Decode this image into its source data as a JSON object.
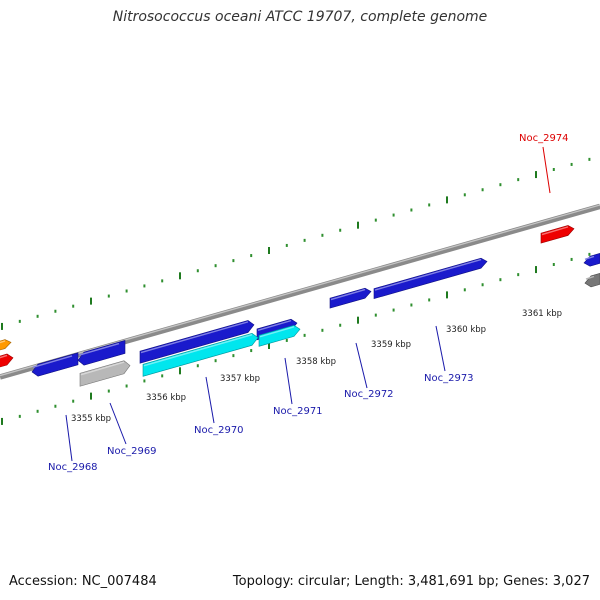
{
  "title": "Nitrosococcus oceani ATCC 19707, complete genome",
  "footer": {
    "accession": "Accession: NC_007484",
    "topology": "Topology: circular; Length: 3,481,691 bp; Genes: 3,027"
  },
  "colors": {
    "background": "#ffffff",
    "backbone": "#8a8a8a",
    "tick_major": "#1f7a1f",
    "tick_minor": "#2f8f2f",
    "gene_blue": "#1a1acc",
    "gene_cyan": "#00e6ee",
    "gene_grey": "#b8b8b8",
    "gene_red": "#ee0000",
    "gene_orange": "#ff9900",
    "label_blue": "#1a1aaa",
    "label_red": "#dd0000"
  },
  "scale_labels": [
    "3355 kbp",
    "3356 kbp",
    "3357 kbp",
    "3358 kbp",
    "3359 kbp",
    "3360 kbp",
    "3361 kbp"
  ],
  "gene_labels": [
    {
      "name": "Noc_2968",
      "color": "label_blue"
    },
    {
      "name": "Noc_2969",
      "color": "label_blue"
    },
    {
      "name": "Noc_2970",
      "color": "label_blue"
    },
    {
      "name": "Noc_2971",
      "color": "label_blue"
    },
    {
      "name": "Noc_2972",
      "color": "label_blue"
    },
    {
      "name": "Noc_2973",
      "color": "label_blue"
    },
    {
      "name": "Noc_2974",
      "color": "label_red"
    }
  ]
}
